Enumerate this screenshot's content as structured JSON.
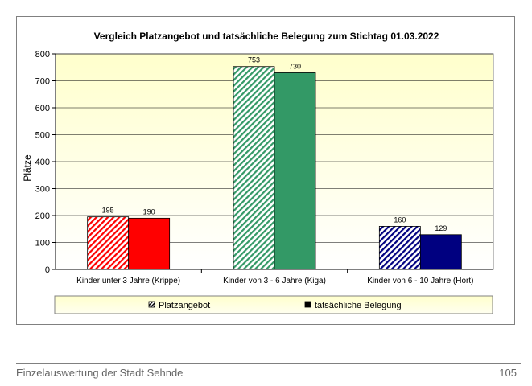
{
  "chart_data": {
    "type": "bar",
    "title": "Vergleich Platzangebot und tatsächliche Belegung zum Stichtag 01.03.2022",
    "ylabel": "Plätze",
    "xlabel": "",
    "ylim": [
      0,
      800
    ],
    "yticks": [
      0,
      100,
      200,
      300,
      400,
      500,
      600,
      700,
      800
    ],
    "grid": true,
    "legend_position": "bottom",
    "categories": [
      "Kinder unter 3 Jahre (Krippe)",
      "Kinder von 3 - 6 Jahre (Kiga)",
      "Kinder von 6 - 10 Jahre (Hort)"
    ],
    "series": [
      {
        "name": "Platzangebot",
        "values": [
          195,
          753,
          160
        ],
        "pattern": "hatched"
      },
      {
        "name": "tatsächliche Belegung",
        "values": [
          190,
          730,
          129
        ],
        "pattern": "solid"
      }
    ],
    "category_colors": [
      "#ff0000",
      "#339966",
      "#000080"
    ],
    "plot_background": "#ffffcc",
    "legend_background": "#ffffcc"
  },
  "footer": {
    "left": "Einzelauswertung der Stadt Sehnde",
    "right": "105"
  }
}
